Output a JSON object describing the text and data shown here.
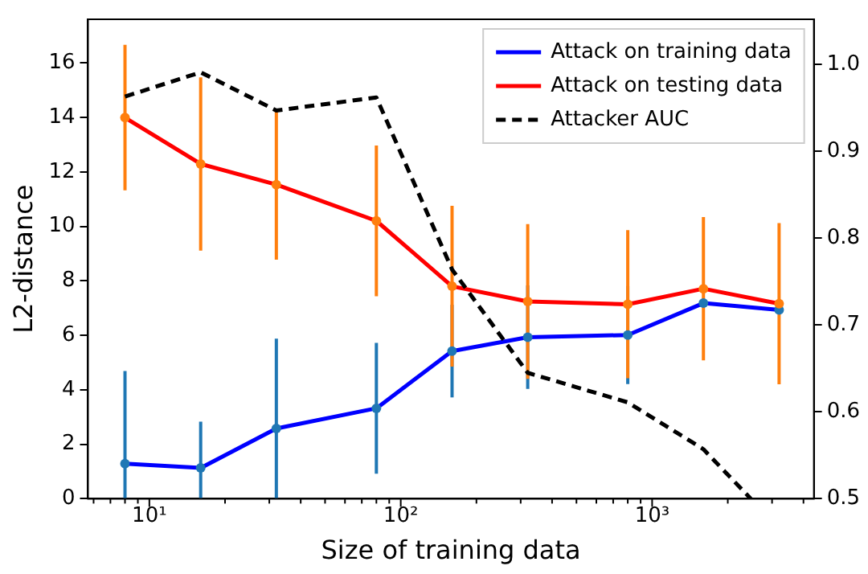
{
  "chart_data": {
    "type": "line",
    "xlabel": "Size of training data",
    "ylabel": "L2-distance",
    "x": [
      8,
      16,
      32,
      80,
      160,
      320,
      800,
      1600,
      3200
    ],
    "log": "x",
    "xlim": [
      5.7,
      4400
    ],
    "xticks": [
      {
        "value": 6,
        "label": null
      },
      {
        "value": 7,
        "label": null
      },
      {
        "value": 8,
        "label": null
      },
      {
        "value": 9,
        "label": null
      },
      {
        "value": 10,
        "label": "10¹"
      },
      {
        "value": 20,
        "label": null
      },
      {
        "value": 30,
        "label": null
      },
      {
        "value": 40,
        "label": null
      },
      {
        "value": 50,
        "label": null
      },
      {
        "value": 60,
        "label": null
      },
      {
        "value": 70,
        "label": null
      },
      {
        "value": 80,
        "label": null
      },
      {
        "value": 90,
        "label": null
      },
      {
        "value": 100,
        "label": "10²"
      },
      {
        "value": 200,
        "label": null
      },
      {
        "value": 300,
        "label": null
      },
      {
        "value": 400,
        "label": null
      },
      {
        "value": 500,
        "label": null
      },
      {
        "value": 600,
        "label": null
      },
      {
        "value": 700,
        "label": null
      },
      {
        "value": 800,
        "label": null
      },
      {
        "value": 900,
        "label": null
      },
      {
        "value": 1000,
        "label": "10³"
      },
      {
        "value": 2000,
        "label": null
      },
      {
        "value": 3000,
        "label": null
      },
      {
        "value": 4000,
        "label": null
      }
    ],
    "ylim": [
      0,
      17.6
    ],
    "yticks": [
      0,
      2,
      4,
      6,
      8,
      10,
      12,
      14,
      16
    ],
    "y2lim": [
      0.5,
      1.052
    ],
    "y2ticks": [
      0.5,
      0.6,
      0.7,
      0.8,
      0.9,
      {
        "value": 1,
        "label": "1.0"
      }
    ],
    "legend": "top right",
    "series": [
      {
        "name": "Attack on training data",
        "color": "#0000ff",
        "colors": [
          "#1f77b4",
          "#1f77b4",
          "#1f77b4",
          "#1f77b4",
          "#1f77b4",
          "#1f77b4",
          "#1f77b4",
          "#1f77b4",
          "#1f77b4"
        ],
        "marker": "circle",
        "values": [
          1.29,
          1.13,
          2.58,
          3.32,
          5.42,
          5.93,
          6.01,
          7.18,
          6.93
        ],
        "errors": [
          3.4,
          1.7,
          3.3,
          2.4,
          1.7,
          1.9,
          1.8,
          null,
          null
        ]
      },
      {
        "name": "Attack on testing data",
        "color": "#ff0000",
        "colors": [
          "#ff7f0e",
          "#ff7f0e",
          "#ff7f0e",
          "#ff7f0e",
          "#ff7f0e",
          "#ff7f0e",
          "#ff7f0e",
          "#ff7f0e",
          "#ff7f0e"
        ],
        "marker": "circle",
        "values": [
          13.99,
          12.29,
          11.53,
          10.2,
          7.8,
          7.24,
          7.14,
          7.71,
          7.16
        ],
        "errors": [
          2.67,
          3.18,
          2.75,
          2.77,
          2.95,
          2.84,
          2.72,
          2.63,
          2.96
        ]
      },
      {
        "name": "Attacker AUC",
        "color": "#000000",
        "axis": "y2",
        "line_style": "dashed",
        "marker": "none",
        "x": [
          8,
          16,
          32,
          80,
          160,
          320,
          800,
          1600,
          2470
        ],
        "values": [
          0.963,
          0.991,
          0.947,
          0.962,
          0.764,
          0.645,
          0.611,
          0.557,
          0.5
        ]
      }
    ]
  }
}
